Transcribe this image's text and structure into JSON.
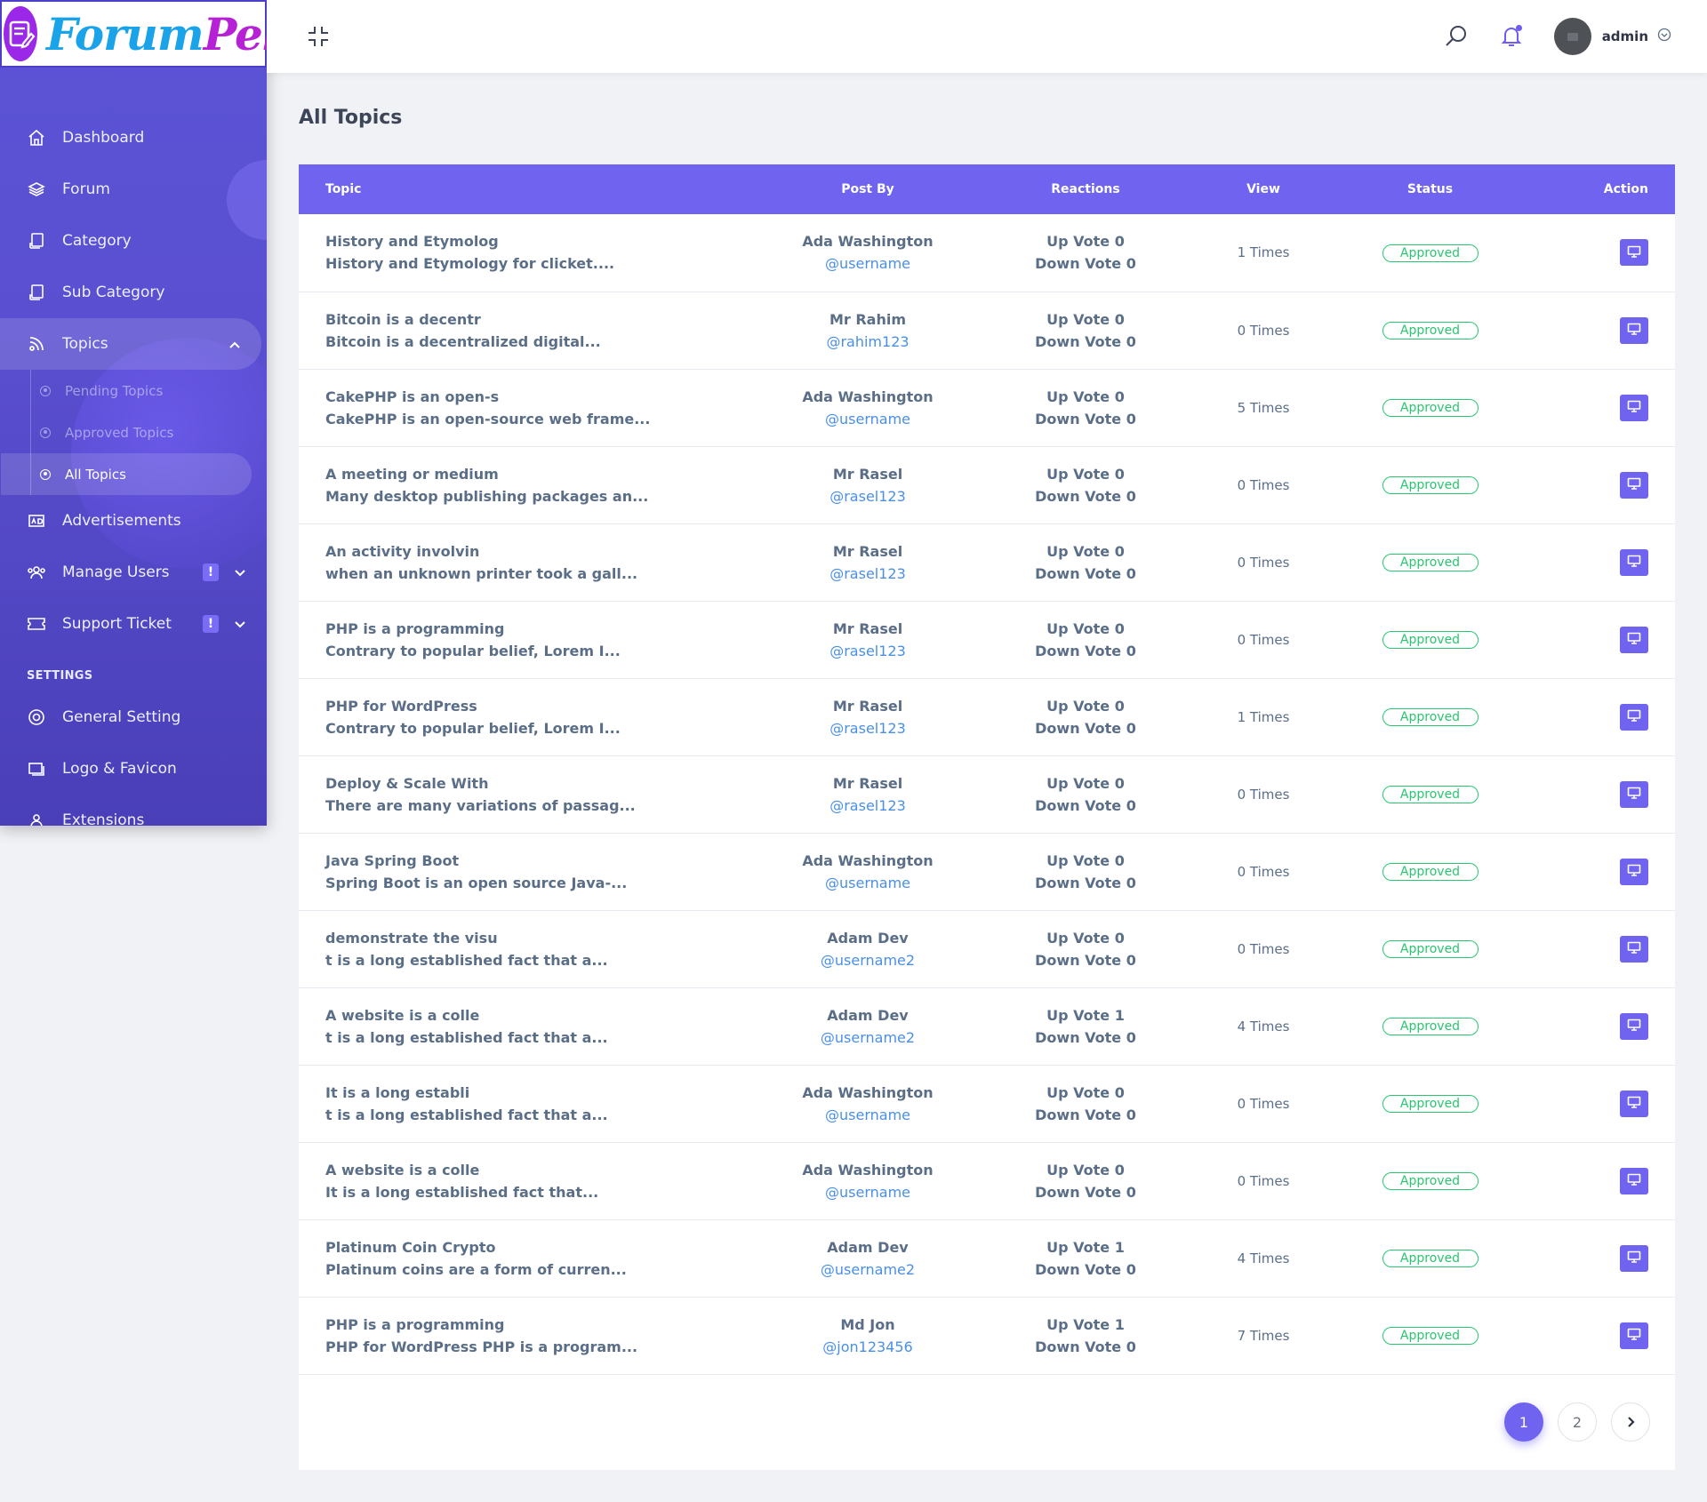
{
  "brand": {
    "part1": "Forum",
    "part2": "Pel"
  },
  "sidebar": {
    "items": [
      {
        "label": "Dashboard"
      },
      {
        "label": "Forum"
      },
      {
        "label": "Category"
      },
      {
        "label": "Sub Category"
      },
      {
        "label": "Topics"
      }
    ],
    "topics_sub": [
      {
        "label": "Pending Topics"
      },
      {
        "label": "Approved Topics"
      },
      {
        "label": "All Topics"
      }
    ],
    "items2": [
      {
        "label": "Advertisements"
      },
      {
        "label": "Manage Users",
        "badge": "!"
      },
      {
        "label": "Support Ticket",
        "badge": "!"
      }
    ],
    "settings_label": "SETTINGS",
    "settings_items": [
      {
        "label": "General Setting"
      },
      {
        "label": "Logo & Favicon"
      },
      {
        "label": "Extensions"
      }
    ]
  },
  "topbar": {
    "user_name": "admin"
  },
  "page": {
    "title": "All Topics"
  },
  "table": {
    "headers": {
      "topic": "Topic",
      "post_by": "Post By",
      "reactions": "Reactions",
      "view": "View",
      "status": "Status",
      "action": "Action"
    },
    "rows": [
      {
        "title": "History and Etymolog",
        "excerpt": "History and Etymology for clicket....",
        "name": "Ada Washington",
        "user": "@username",
        "up": "Up Vote 0",
        "down": "Down Vote 0",
        "views": "1 Times",
        "status": "Approved"
      },
      {
        "title": "Bitcoin is a decentr",
        "excerpt": "Bitcoin is a decentralized digital...",
        "name": "Mr Rahim",
        "user": "@rahim123",
        "up": "Up Vote 0",
        "down": "Down Vote 0",
        "views": "0 Times",
        "status": "Approved"
      },
      {
        "title": "CakePHP is an open-s",
        "excerpt": "CakePHP is an open-source web frame...",
        "name": "Ada Washington",
        "user": "@username",
        "up": "Up Vote 0",
        "down": "Down Vote 0",
        "views": "5 Times",
        "status": "Approved"
      },
      {
        "title": "A meeting or medium",
        "excerpt": "Many desktop publishing packages an...",
        "name": "Mr Rasel",
        "user": "@rasel123",
        "up": "Up Vote 0",
        "down": "Down Vote 0",
        "views": "0 Times",
        "status": "Approved"
      },
      {
        "title": "An activity involvin",
        "excerpt": "when an unknown printer took a gall...",
        "name": "Mr Rasel",
        "user": "@rasel123",
        "up": "Up Vote 0",
        "down": "Down Vote 0",
        "views": "0 Times",
        "status": "Approved"
      },
      {
        "title": "PHP is a programming",
        "excerpt": "Contrary to popular belief, Lorem I...",
        "name": "Mr Rasel",
        "user": "@rasel123",
        "up": "Up Vote 0",
        "down": "Down Vote 0",
        "views": "0 Times",
        "status": "Approved"
      },
      {
        "title": "PHP for WordPress",
        "excerpt": "Contrary to popular belief, Lorem I...",
        "name": "Mr Rasel",
        "user": "@rasel123",
        "up": "Up Vote 0",
        "down": "Down Vote 0",
        "views": "1 Times",
        "status": "Approved"
      },
      {
        "title": "Deploy & Scale With",
        "excerpt": "There are many variations of passag...",
        "name": "Mr Rasel",
        "user": "@rasel123",
        "up": "Up Vote 0",
        "down": "Down Vote 0",
        "views": "0 Times",
        "status": "Approved"
      },
      {
        "title": "Java Spring Boot",
        "excerpt": "Spring Boot is an open source Java-...",
        "name": "Ada Washington",
        "user": "@username",
        "up": "Up Vote 0",
        "down": "Down Vote 0",
        "views": "0 Times",
        "status": "Approved"
      },
      {
        "title": "demonstrate the visu",
        "excerpt": "t is a long established fact that a...",
        "name": "Adam Dev",
        "user": "@username2",
        "up": "Up Vote 0",
        "down": "Down Vote 0",
        "views": "0 Times",
        "status": "Approved"
      },
      {
        "title": "A website is a colle",
        "excerpt": "t is a long established fact that a...",
        "name": "Adam Dev",
        "user": "@username2",
        "up": "Up Vote 1",
        "down": "Down Vote 0",
        "views": "4 Times",
        "status": "Approved"
      },
      {
        "title": "It is a long establi",
        "excerpt": "t is a long established fact that a...",
        "name": "Ada Washington",
        "user": "@username",
        "up": "Up Vote 0",
        "down": "Down Vote 0",
        "views": "0 Times",
        "status": "Approved"
      },
      {
        "title": "A website is a colle",
        "excerpt": "It is a long established fact that...",
        "name": "Ada Washington",
        "user": "@username",
        "up": "Up Vote 0",
        "down": "Down Vote 0",
        "views": "0 Times",
        "status": "Approved"
      },
      {
        "title": "Platinum Coin Crypto",
        "excerpt": "Platinum coins are a form of curren...",
        "name": "Adam Dev",
        "user": "@username2",
        "up": "Up Vote 1",
        "down": "Down Vote 0",
        "views": "4 Times",
        "status": "Approved"
      },
      {
        "title": "PHP is a programming",
        "excerpt": "PHP for WordPress PHP is a program...",
        "name": "Md Jon",
        "user": "@jon123456",
        "up": "Up Vote 1",
        "down": "Down Vote 0",
        "views": "7 Times",
        "status": "Approved"
      }
    ]
  },
  "pagination": {
    "pages": [
      "1",
      "2"
    ],
    "current": "1"
  },
  "colors": {
    "accent": "#6f63f0",
    "sidebar": "#5a4fd0",
    "approved": "#28c76f",
    "link": "#4a8fe7"
  }
}
